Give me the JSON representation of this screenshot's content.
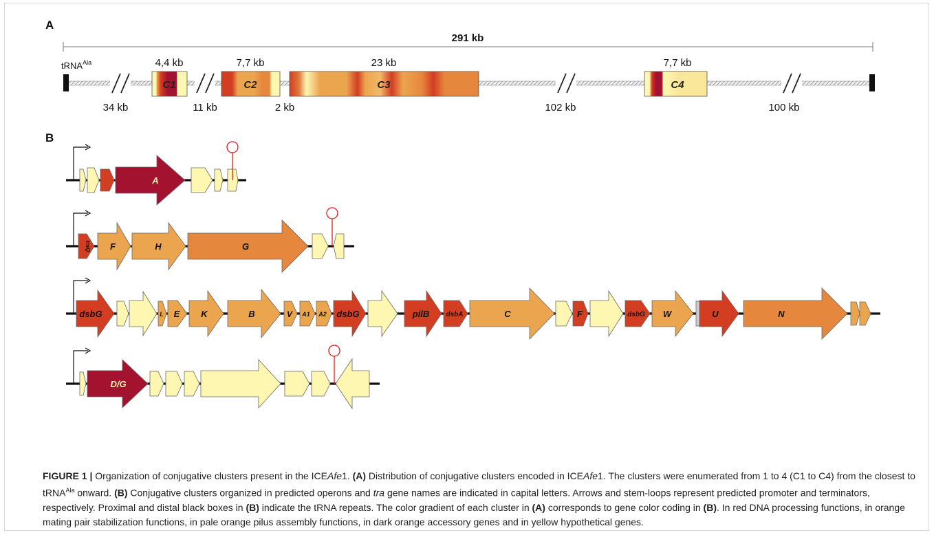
{
  "panel_a": {
    "label": "A",
    "total_label": "291 kb",
    "trna": {
      "base": "tRNA",
      "sup": "Ala"
    },
    "clusters": [
      {
        "name": "C1",
        "size": "4,4 kb"
      },
      {
        "name": "C2",
        "size": "7,7 kb"
      },
      {
        "name": "C3",
        "size": "23 kb"
      },
      {
        "name": "C4",
        "size": "7,7 kb"
      }
    ],
    "gap_labels": [
      "34 kb",
      "11 kb",
      "2 kb",
      "102 kb",
      "100 kb"
    ]
  },
  "panel_b": {
    "label": "B",
    "operon1": {
      "genes": [
        "A"
      ]
    },
    "operon2": {
      "genes": [
        "traQ",
        "F",
        "H",
        "G"
      ]
    },
    "operon3": {
      "genes": [
        "dsbG",
        "L",
        "E",
        "K",
        "B",
        "V",
        "A1",
        "A2",
        "dsbG",
        "pilB",
        "dsbA",
        "C",
        "F",
        "dsbG",
        "W",
        "U",
        "N"
      ]
    },
    "operon4": {
      "genes": [
        "D/G"
      ]
    }
  },
  "colors": {
    "red": "#a3122e",
    "orange_red": "#d33d22",
    "orange": "#e6873e",
    "pale_orange": "#eca54f",
    "yellow": "#fdf7b2",
    "terminator": "#e21b1b"
  },
  "caption": {
    "label": "FIGURE 1 |",
    "s1": " Organization of conjugative clusters present in the ICE",
    "ital1": "Afe",
    "s2": "1. ",
    "bA1": "(A)",
    "s3": " Distribution of conjugative clusters encoded in ICE",
    "ital2": "Afe",
    "s4": "1. The clusters were enumerated from 1 to 4 (C1 to C4) from the closest to tRNA",
    "sup1": "Ala",
    "s5": " onward. ",
    "bB1": "(B)",
    "s6": " Conjugative clusters organized in predicted operons and ",
    "ital3": "tra",
    "s7": " gene names are indicated in capital letters. Arrows and stem-loops represent predicted promoter and terminators, respectively. Proximal and distal black boxes in ",
    "bB2": "(B)",
    "s8": " indicate the tRNA repeats. The color gradient of each cluster in ",
    "bA2": "(A)",
    "s9": " corresponds to gene color coding in ",
    "bB3": "(B)",
    "s10": ". In red DNA processing functions, in orange mating pair stabilization functions, in pale orange pilus assembly functions, in dark orange accessory genes and in yellow hypothetical genes."
  }
}
